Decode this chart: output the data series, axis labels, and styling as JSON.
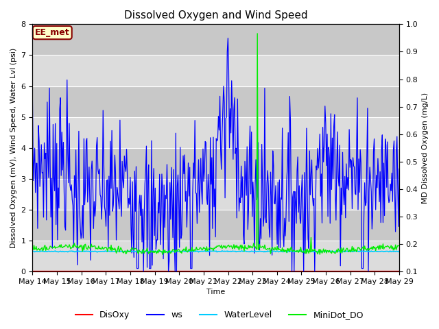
{
  "title": "Dissolved Oxygen and Wind Speed",
  "ylabel_left": "Dissolved Oxygen (mV), Wind Speed, Water Lvl (psi)",
  "ylabel_right": "MD Dissolved Oxygen (mg/L)",
  "xlabel": "Time",
  "ylim_left": [
    0.0,
    8.0
  ],
  "ylim_right": [
    0.1,
    1.0
  ],
  "x_start": 14,
  "x_end": 29,
  "x_ticks": [
    14,
    15,
    16,
    17,
    18,
    19,
    20,
    21,
    22,
    23,
    24,
    25,
    26,
    27,
    28,
    29
  ],
  "x_tick_labels": [
    "May 14",
    "May 15",
    "May 16",
    "May 17",
    "May 18",
    "May 19",
    "May 20",
    "May 21",
    "May 22",
    "May 23",
    "May 24",
    "May 25",
    "May 26",
    "May 27",
    "May 28",
    "May 29"
  ],
  "legend_labels": [
    "DisOxy",
    "ws",
    "WaterLevel",
    "MiniDot_DO"
  ],
  "legend_colors": [
    "#ff0000",
    "#0000ff",
    "#00ccff",
    "#00ee00"
  ],
  "annotation_text": "EE_met",
  "annotation_box_color": "#ffffcc",
  "annotation_box_edge": "#880000",
  "bg_light": "#dcdcdc",
  "bg_dark": "#c8c8c8",
  "grid_color": "#ffffff",
  "title_fontsize": 11,
  "label_fontsize": 8,
  "tick_fontsize": 8,
  "legend_fontsize": 9
}
